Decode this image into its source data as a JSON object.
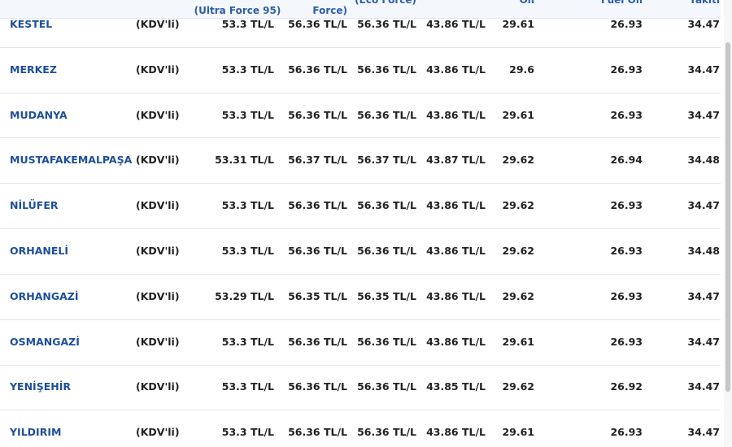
{
  "table": {
    "header": [
      "(Ultra Force 95)",
      "Force)",
      "(Eco Force)",
      "Oil",
      "Fuel Oil",
      "Yakıtı"
    ],
    "rows": [
      [
        "KESTEL",
        "(KDV'li)",
        "53.3 TL/L",
        "56.36 TL/L",
        "56.36 TL/L",
        "43.86 TL/L",
        "29.61",
        "26.93",
        "34.47"
      ],
      [
        "MERKEZ",
        "(KDV'li)",
        "53.3 TL/L",
        "56.36 TL/L",
        "56.36 TL/L",
        "43.86 TL/L",
        "29.6",
        "26.93",
        "34.47"
      ],
      [
        "MUDANYA",
        "(KDV'li)",
        "53.3 TL/L",
        "56.36 TL/L",
        "56.36 TL/L",
        "43.86 TL/L",
        "29.61",
        "26.93",
        "34.47"
      ],
      [
        "MUSTAFAKEMALPAŞA",
        "(KDV'li)",
        "53.31 TL/L",
        "56.37 TL/L",
        "56.37 TL/L",
        "43.87 TL/L",
        "29.62",
        "26.94",
        "34.48"
      ],
      [
        "NİLÜFER",
        "(KDV'li)",
        "53.3 TL/L",
        "56.36 TL/L",
        "56.36 TL/L",
        "43.86 TL/L",
        "29.62",
        "26.93",
        "34.47"
      ],
      [
        "ORHANELİ",
        "(KDV'li)",
        "53.3 TL/L",
        "56.36 TL/L",
        "56.36 TL/L",
        "43.86 TL/L",
        "29.62",
        "26.93",
        "34.48"
      ],
      [
        "ORHANGAZİ",
        "(KDV'li)",
        "53.29 TL/L",
        "56.35 TL/L",
        "56.35 TL/L",
        "43.86 TL/L",
        "29.62",
        "26.93",
        "34.47"
      ],
      [
        "OSMANGAZİ",
        "(KDV'li)",
        "53.3 TL/L",
        "56.36 TL/L",
        "56.36 TL/L",
        "43.86 TL/L",
        "29.61",
        "26.93",
        "34.47"
      ],
      [
        "YENİŞEHİR",
        "(KDV'li)",
        "53.3 TL/L",
        "56.36 TL/L",
        "56.36 TL/L",
        "43.85 TL/L",
        "29.62",
        "26.92",
        "34.47"
      ],
      [
        "YILDIRIM",
        "(KDV'li)",
        "53.3 TL/L",
        "56.36 TL/L",
        "56.36 TL/L",
        "43.86 TL/L",
        "29.61",
        "26.93",
        "34.47"
      ]
    ]
  }
}
